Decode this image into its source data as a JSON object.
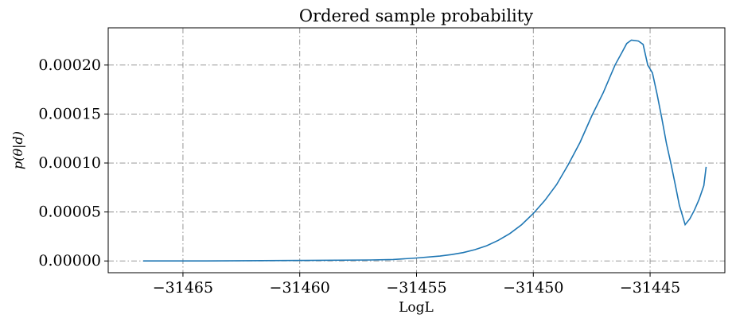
{
  "chart_data": {
    "type": "line",
    "title": "Ordered sample probability",
    "xlabel": "LogL",
    "ylabel": "p(θ|d)",
    "xlim": [
      -31468.2,
      -31441.8
    ],
    "ylim": [
      -1.2e-05,
      0.000238
    ],
    "xticks": [
      -31465,
      -31460,
      -31455,
      -31450,
      -31445
    ],
    "xtick_labels": [
      "−31465",
      "−31460",
      "−31455",
      "−31450",
      "−31445"
    ],
    "yticks": [
      0.0,
      5e-05,
      0.0001,
      0.00015,
      0.0002
    ],
    "ytick_labels": [
      "0.00000",
      "0.00005",
      "0.00010",
      "0.00015",
      "0.00020"
    ],
    "grid": true,
    "line_color": "#1f77b4",
    "series": [
      {
        "x": [
          -31466.7,
          -31464,
          -31460,
          -31457,
          -31456,
          -31455,
          -31454,
          -31453.5,
          -31453,
          -31452.5,
          -31452,
          -31451.5,
          -31451,
          -31450.5,
          -31450,
          -31449.5,
          -31449,
          -31448.5,
          -31448,
          -31447.5,
          -31447,
          -31446.5,
          -31446.2,
          -31446,
          -31445.8,
          -31445.5,
          -31445.3,
          -31445.1,
          -31444.9,
          -31444.7,
          -31444.5,
          -31444.3,
          -31444.1,
          -31443.9,
          -31443.75,
          -31443.6,
          -31443.5,
          -31443.3,
          -31443.1,
          -31442.9,
          -31442.7,
          -31442.6
        ],
        "y": [
          0.0,
          0.0,
          5e-07,
          1e-06,
          1.5e-06,
          3e-06,
          5e-06,
          6.5e-06,
          8.5e-06,
          1.15e-05,
          1.55e-05,
          2.1e-05,
          2.8e-05,
          3.7e-05,
          4.85e-05,
          6.2e-05,
          7.8e-05,
          9.85e-05,
          0.000121,
          0.000148,
          0.000172,
          0.0002,
          0.000213,
          0.000222,
          0.0002255,
          0.0002245,
          0.000221,
          0.0002,
          0.000192,
          0.00017,
          0.000146,
          0.00012,
          9.85e-05,
          7.5e-05,
          5.7e-05,
          4.5e-05,
          3.7e-05,
          4.3e-05,
          5.2e-05,
          6.3e-05,
          7.7e-05,
          9.6e-05
        ]
      }
    ]
  }
}
